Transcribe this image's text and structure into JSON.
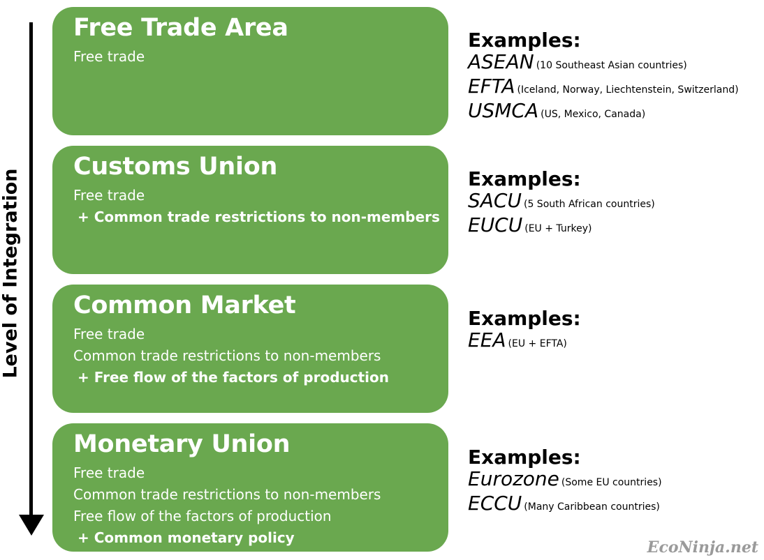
{
  "axis": {
    "label": "Level of Integration"
  },
  "stages": [
    {
      "title": "Free Trade Area",
      "features": [
        "Free trade"
      ],
      "added": "",
      "examples_heading": "Examples:",
      "examples": [
        {
          "name": "ASEAN",
          "desc": "(10 Southeast Asian countries)"
        },
        {
          "name": "EFTA",
          "desc": "(Iceland, Norway, Liechtenstein, Switzerland)"
        },
        {
          "name": "USMCA",
          "desc": "(US, Mexico, Canada)"
        }
      ]
    },
    {
      "title": "Customs Union",
      "features": [
        "Free trade"
      ],
      "added": "+ Common trade restrictions to non-members",
      "examples_heading": "Examples:",
      "examples": [
        {
          "name": "SACU",
          "desc": "(5 South African countries)"
        },
        {
          "name": "EUCU",
          "desc": "(EU + Turkey)"
        }
      ]
    },
    {
      "title": "Common Market",
      "features": [
        "Free trade",
        "Common trade restrictions to non-members"
      ],
      "added": "+ Free flow of the factors of production",
      "examples_heading": "Examples:",
      "examples": [
        {
          "name": "EEA",
          "desc": "(EU + EFTA)"
        }
      ]
    },
    {
      "title": "Monetary Union",
      "features": [
        "Free trade",
        "Common trade restrictions to non-members",
        "Free flow of the factors of production"
      ],
      "added": "+ Common monetary policy",
      "examples_heading": "Examples:",
      "examples": [
        {
          "name": "Eurozone",
          "desc": "(Some EU countries)"
        },
        {
          "name": "ECCU",
          "desc": "(Many Caribbean countries)"
        }
      ]
    }
  ],
  "watermark": "EcoNinja.net",
  "colors": {
    "box": "#6aa84f",
    "box_text": "#ffffff",
    "text": "#000000",
    "watermark": "#9a9a9a"
  }
}
